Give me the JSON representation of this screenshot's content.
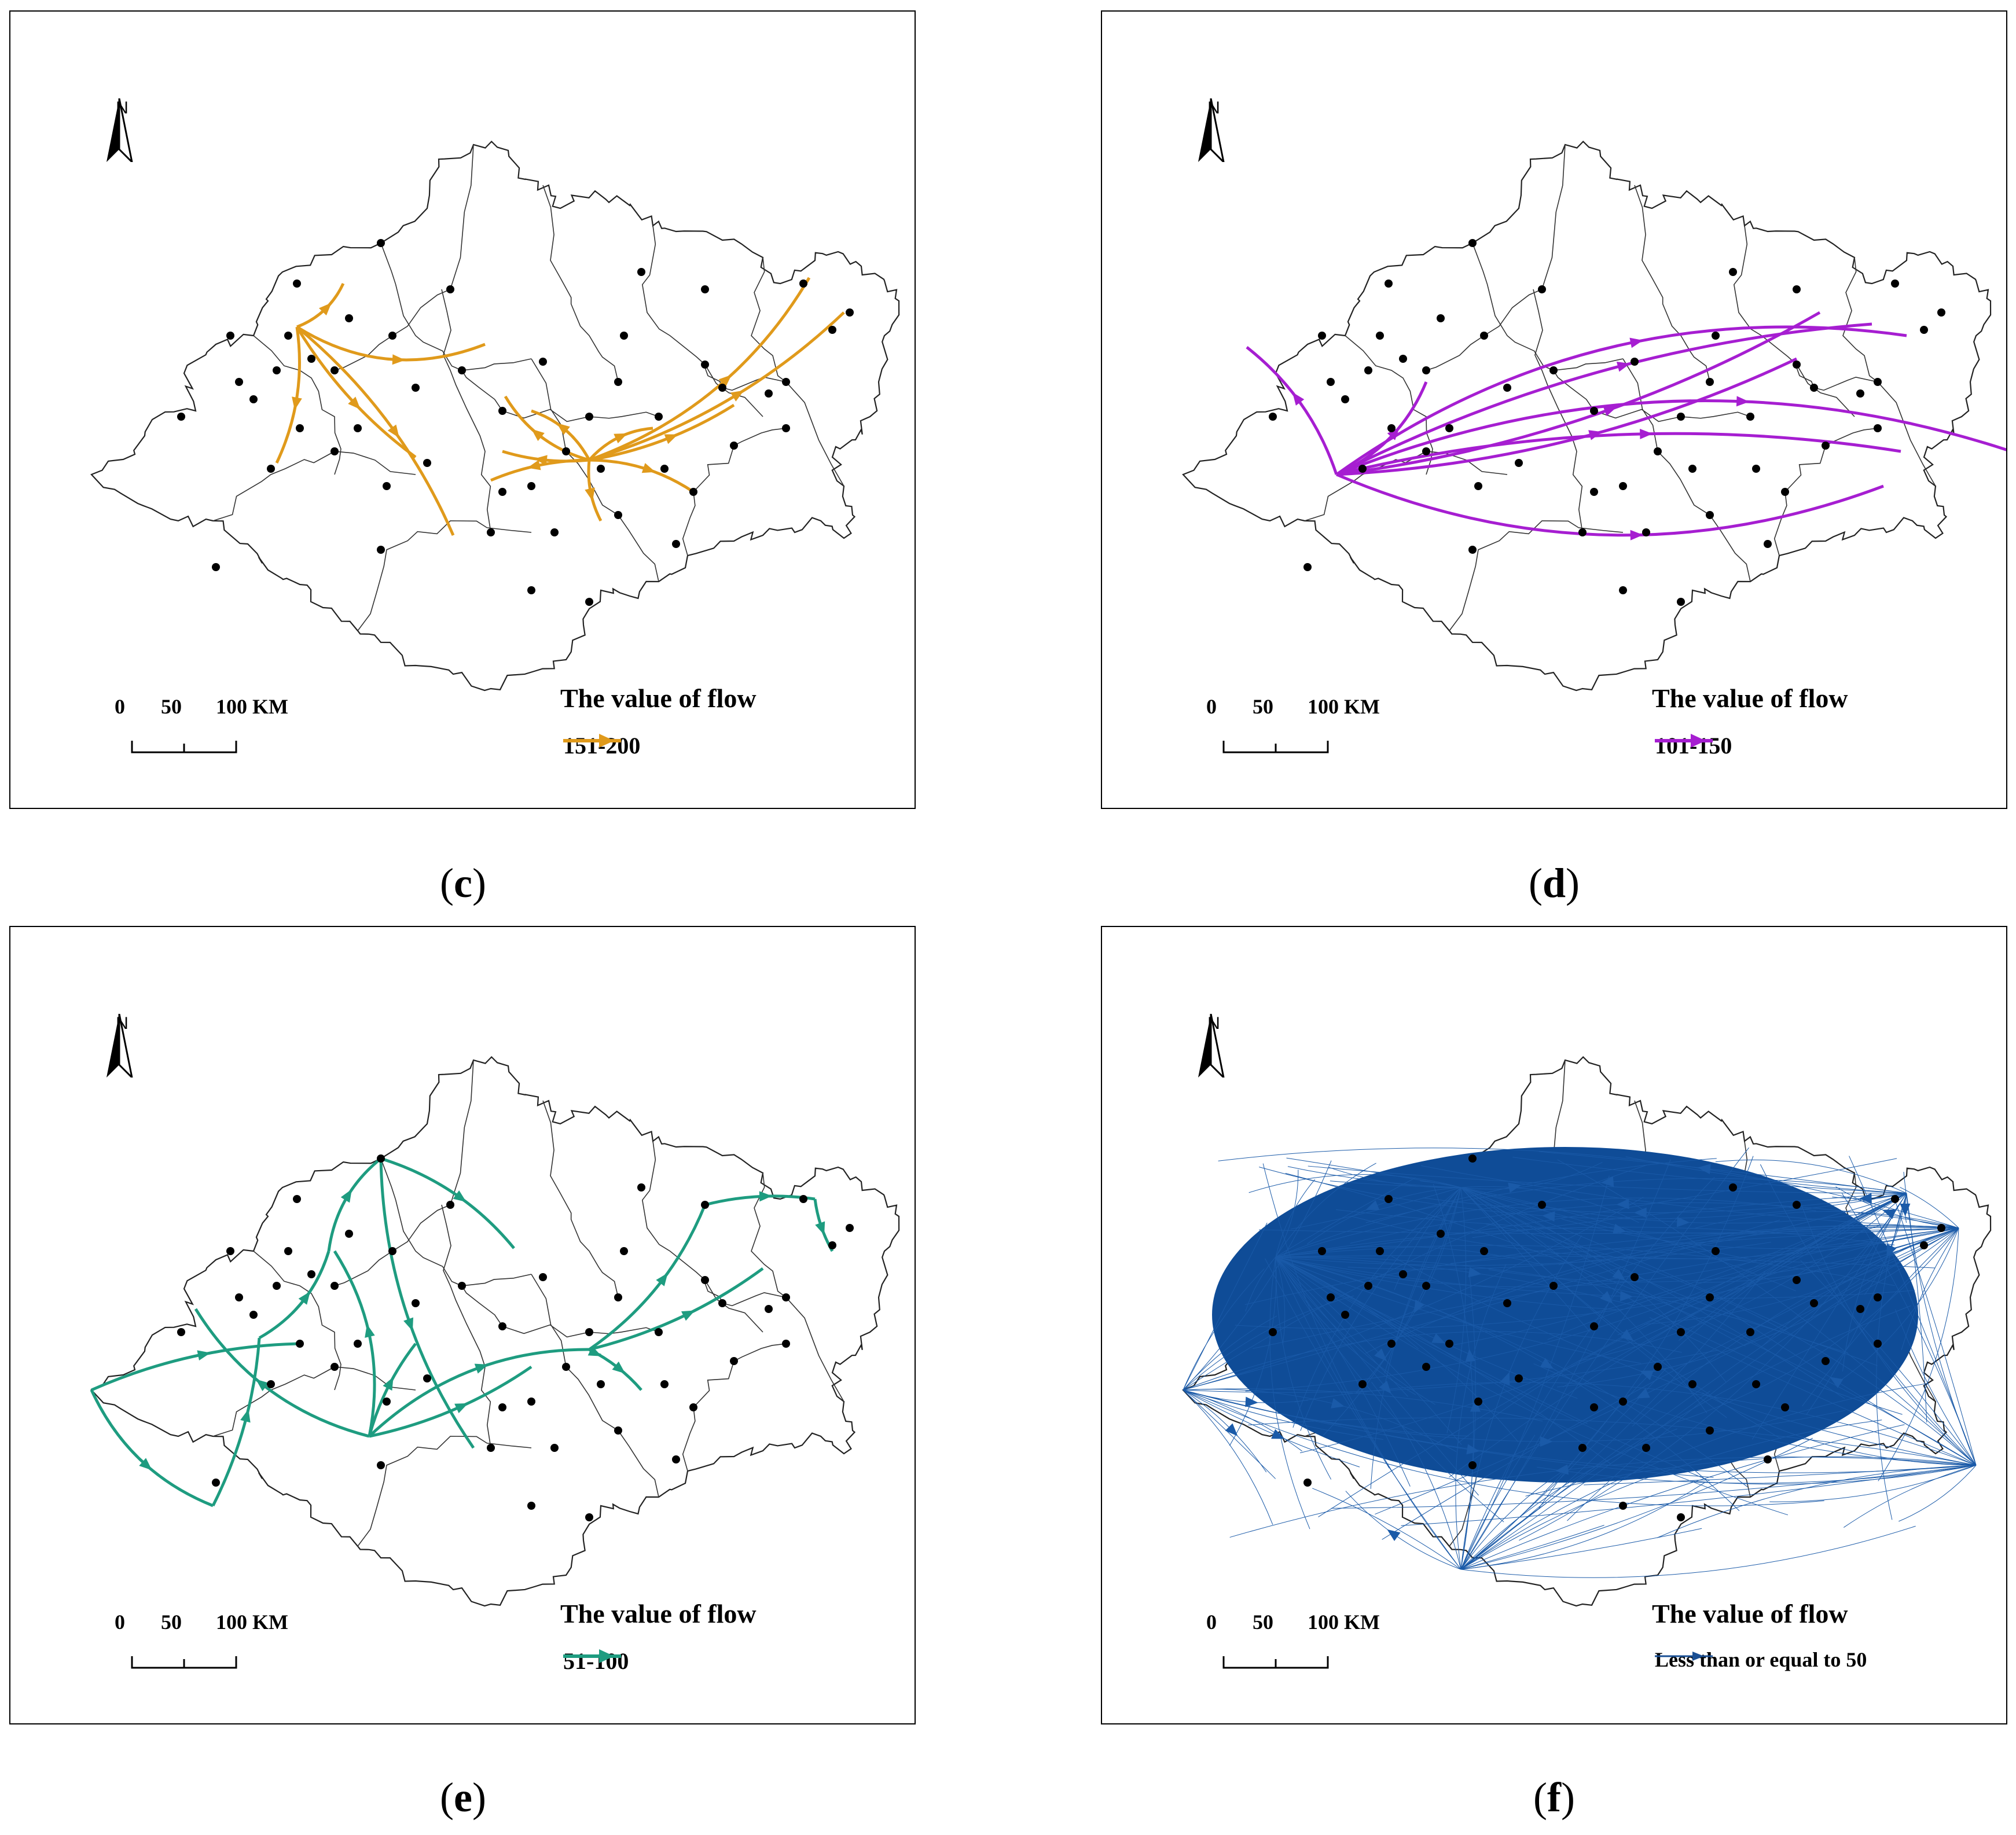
{
  "panels": [
    {
      "id": "c",
      "caption": "c",
      "legend_title": "The value of flow",
      "legend_label": "151-200",
      "color": "#e09a1b"
    },
    {
      "id": "d",
      "caption": "d",
      "legend_title": "The value of flow",
      "legend_label": "101-150",
      "color": "#a61ed1"
    },
    {
      "id": "e",
      "caption": "e",
      "legend_title": "The value of flow",
      "legend_label": "51-100",
      "color": "#1e9c80"
    },
    {
      "id": "f",
      "caption": "f",
      "legend_title": "The value of flow",
      "legend_label": "Less than or equal to 50",
      "color": "#1a4f94"
    }
  ],
  "north_label": "N",
  "scale_labels": [
    "0",
    "50",
    "100 KM"
  ]
}
